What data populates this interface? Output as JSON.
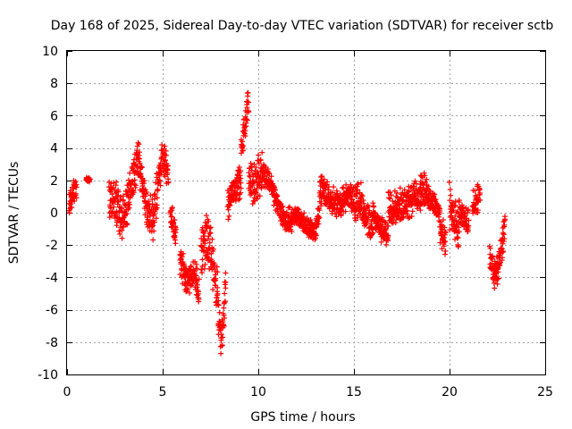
{
  "chart_data": {
    "type": "scatter",
    "title": "Day 168 of 2025, Sidereal Day-to-day VTEC variation (SDTVAR) for receiver sctb",
    "xlabel": "GPS time / hours",
    "ylabel": "SDTVAR / TECUs",
    "xlim": [
      0,
      25
    ],
    "ylim": [
      -10,
      10
    ],
    "xticks": [
      0,
      5,
      10,
      15,
      20,
      25
    ],
    "yticks": [
      -10,
      -8,
      -6,
      -4,
      -2,
      0,
      2,
      4,
      6,
      8,
      10
    ],
    "grid": true,
    "marker": "+",
    "series_color": "#ff0000",
    "series": [
      {
        "name": "sctb",
        "segments": [
          {
            "start": 0.1,
            "end": 0.5,
            "center": [
              [
                0.1,
                0.5
              ],
              [
                0.3,
                1.2
              ],
              [
                0.5,
                1.5
              ]
            ],
            "spread": 1.0
          },
          {
            "start": 1.0,
            "end": 1.2,
            "center": [
              [
                1.0,
                2.1
              ],
              [
                1.2,
                2.0
              ]
            ],
            "spread": 0.2
          },
          {
            "start": 2.2,
            "end": 5.3,
            "center": [
              [
                2.2,
                1.2
              ],
              [
                2.6,
                0.5
              ],
              [
                2.9,
                -0.5
              ],
              [
                3.2,
                0.8
              ],
              [
                3.5,
                2.5
              ],
              [
                3.7,
                3.5
              ],
              [
                3.9,
                2.0
              ],
              [
                4.2,
                0.0
              ],
              [
                4.5,
                -0.5
              ],
              [
                4.8,
                2.5
              ],
              [
                5.1,
                3.2
              ],
              [
                5.3,
                2.5
              ]
            ],
            "spread": 2.0
          },
          {
            "start": 5.4,
            "end": 5.7,
            "center": [
              [
                5.4,
                0.0
              ],
              [
                5.7,
                -1.5
              ]
            ],
            "spread": 1.5
          },
          {
            "start": 5.9,
            "end": 6.9,
            "center": [
              [
                5.9,
                -3.0
              ],
              [
                6.3,
                -4.2
              ],
              [
                6.6,
                -3.5
              ],
              [
                6.9,
                -4.8
              ]
            ],
            "spread": 1.6
          },
          {
            "start": 7.0,
            "end": 7.9,
            "center": [
              [
                7.0,
                -2.5
              ],
              [
                7.3,
                -1.5
              ],
              [
                7.6,
                -3.0
              ],
              [
                7.9,
                -5.5
              ]
            ],
            "spread": 2.6
          },
          {
            "start": 7.9,
            "end": 8.3,
            "center": [
              [
                7.9,
                -6.5
              ],
              [
                8.1,
                -8.0
              ],
              [
                8.3,
                -4.0
              ]
            ],
            "spread": 2.0
          },
          {
            "start": 8.4,
            "end": 9.1,
            "center": [
              [
                8.4,
                0.5
              ],
              [
                8.7,
                1.5
              ],
              [
                9.1,
                2.0
              ]
            ],
            "spread": 1.5
          },
          {
            "start": 9.1,
            "end": 9.5,
            "center": [
              [
                9.1,
                3.5
              ],
              [
                9.3,
                5.5
              ],
              [
                9.5,
                6.8
              ]
            ],
            "spread": 1.6
          },
          {
            "start": 9.5,
            "end": 10.2,
            "center": [
              [
                9.5,
                2.5
              ],
              [
                9.8,
                1.5
              ],
              [
                10.2,
                2.8
              ]
            ],
            "spread": 2.0
          },
          {
            "start": 10.2,
            "end": 12.0,
            "center": [
              [
                10.2,
                2.5
              ],
              [
                10.6,
                2.0
              ],
              [
                11.0,
                0.5
              ],
              [
                11.4,
                -0.5
              ],
              [
                12.0,
                -0.3
              ]
            ],
            "spread": 1.1
          },
          {
            "start": 12.0,
            "end": 13.2,
            "center": [
              [
                12.0,
                0.0
              ],
              [
                12.5,
                -0.8
              ],
              [
                13.0,
                -1.2
              ],
              [
                13.2,
                0.3
              ]
            ],
            "spread": 0.9
          },
          {
            "start": 13.2,
            "end": 15.0,
            "center": [
              [
                13.2,
                1.5
              ],
              [
                13.7,
                1.0
              ],
              [
                14.2,
                0.5
              ],
              [
                14.7,
                1.0
              ],
              [
                15.0,
                0.8
              ]
            ],
            "spread": 1.4
          },
          {
            "start": 15.0,
            "end": 16.0,
            "center": [
              [
                15.0,
                0.5
              ],
              [
                15.3,
                1.0
              ],
              [
                15.6,
                -0.5
              ],
              [
                16.0,
                -1.0
              ]
            ],
            "spread": 1.8
          },
          {
            "start": 16.0,
            "end": 16.8,
            "center": [
              [
                16.0,
                0.0
              ],
              [
                16.4,
                -1.0
              ],
              [
                16.8,
                -1.5
              ]
            ],
            "spread": 1.2
          },
          {
            "start": 16.8,
            "end": 18.8,
            "center": [
              [
                16.8,
                0.5
              ],
              [
                17.3,
                0.3
              ],
              [
                17.8,
                0.8
              ],
              [
                18.3,
                1.0
              ],
              [
                18.8,
                1.5
              ]
            ],
            "spread": 1.6
          },
          {
            "start": 18.8,
            "end": 19.5,
            "center": [
              [
                18.8,
                1.2
              ],
              [
                19.2,
                0.5
              ],
              [
                19.5,
                0.0
              ]
            ],
            "spread": 1.2
          },
          {
            "start": 19.5,
            "end": 19.8,
            "center": [
              [
                19.5,
                -1.0
              ],
              [
                19.8,
                -2.0
              ]
            ],
            "spread": 1.6
          },
          {
            "start": 20.0,
            "end": 20.5,
            "center": [
              [
                20.0,
                0.5
              ],
              [
                20.3,
                -0.5
              ],
              [
                20.5,
                -1.5
              ]
            ],
            "spread": 2.2
          },
          {
            "start": 20.5,
            "end": 21.0,
            "center": [
              [
                20.5,
                0.0
              ],
              [
                20.8,
                -0.5
              ],
              [
                21.0,
                -0.5
              ]
            ],
            "spread": 1.2
          },
          {
            "start": 21.2,
            "end": 21.6,
            "center": [
              [
                21.2,
                0.5
              ],
              [
                21.6,
                1.0
              ]
            ],
            "spread": 1.4
          },
          {
            "start": 22.1,
            "end": 22.9,
            "center": [
              [
                22.1,
                -2.5
              ],
              [
                22.3,
                -4.0
              ],
              [
                22.5,
                -3.5
              ],
              [
                22.7,
                -2.5
              ],
              [
                22.9,
                -0.5
              ]
            ],
            "spread": 1.6
          }
        ]
      }
    ]
  }
}
